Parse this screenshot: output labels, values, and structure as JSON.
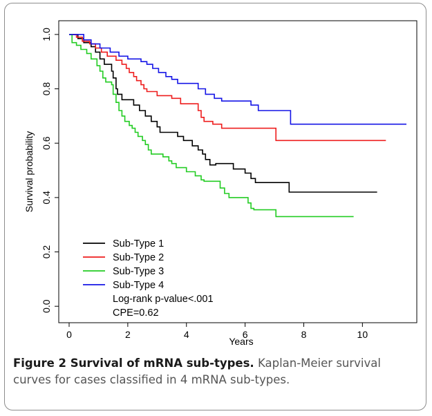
{
  "figure": {
    "caption_title": "Figure 2 Survival of mRNA sub-types.",
    "caption_text": " Kaplan-Meier survival curves for cases classified in 4 mRNA sub-types."
  },
  "chart_data": {
    "type": "line",
    "step": true,
    "title": "",
    "xlabel": "Years",
    "ylabel": "Survival probability",
    "xlim": [
      0,
      11.5
    ],
    "ylim": [
      -0.03,
      1.02
    ],
    "xticks": [
      0,
      2,
      4,
      6,
      8,
      10
    ],
    "yticks": [
      0.0,
      0.2,
      0.4,
      0.6,
      0.8,
      1.0
    ],
    "ytick_labels": [
      "0.0",
      "0.2",
      "0.4",
      "0.6",
      "0.8",
      "1.0"
    ],
    "grid": false,
    "legend_position": "bottom-left",
    "annotations": [
      "Log-rank p-value<.001",
      "CPE=0.62"
    ],
    "series": [
      {
        "name": "Sub-Type 1",
        "color": "#000000",
        "points": [
          [
            0,
            1.0
          ],
          [
            0.3,
            0.985
          ],
          [
            0.5,
            0.97
          ],
          [
            0.75,
            0.955
          ],
          [
            0.9,
            0.935
          ],
          [
            1.05,
            0.91
          ],
          [
            1.2,
            0.89
          ],
          [
            1.45,
            0.865
          ],
          [
            1.5,
            0.84
          ],
          [
            1.6,
            0.8
          ],
          [
            1.65,
            0.78
          ],
          [
            1.8,
            0.76
          ],
          [
            2.2,
            0.74
          ],
          [
            2.4,
            0.72
          ],
          [
            2.6,
            0.7
          ],
          [
            2.8,
            0.68
          ],
          [
            3.0,
            0.66
          ],
          [
            3.1,
            0.64
          ],
          [
            3.7,
            0.625
          ],
          [
            3.9,
            0.61
          ],
          [
            4.2,
            0.59
          ],
          [
            4.4,
            0.575
          ],
          [
            4.55,
            0.56
          ],
          [
            4.65,
            0.54
          ],
          [
            4.8,
            0.52
          ],
          [
            5.0,
            0.525
          ],
          [
            5.6,
            0.505
          ],
          [
            6.0,
            0.49
          ],
          [
            6.2,
            0.47
          ],
          [
            6.35,
            0.455
          ],
          [
            7.5,
            0.42
          ],
          [
            10.5,
            0.42
          ]
        ]
      },
      {
        "name": "Sub-Type 2",
        "color": "#ee1c1c",
        "points": [
          [
            0,
            1.0
          ],
          [
            0.25,
            0.99
          ],
          [
            0.45,
            0.975
          ],
          [
            0.7,
            0.965
          ],
          [
            0.9,
            0.95
          ],
          [
            1.1,
            0.935
          ],
          [
            1.3,
            0.92
          ],
          [
            1.6,
            0.905
          ],
          [
            1.8,
            0.89
          ],
          [
            1.95,
            0.875
          ],
          [
            2.05,
            0.86
          ],
          [
            2.2,
            0.845
          ],
          [
            2.3,
            0.83
          ],
          [
            2.45,
            0.815
          ],
          [
            2.55,
            0.8
          ],
          [
            2.65,
            0.79
          ],
          [
            3.0,
            0.775
          ],
          [
            3.5,
            0.765
          ],
          [
            3.8,
            0.745
          ],
          [
            4.4,
            0.72
          ],
          [
            4.5,
            0.695
          ],
          [
            4.6,
            0.68
          ],
          [
            4.9,
            0.67
          ],
          [
            5.2,
            0.655
          ],
          [
            7.05,
            0.61
          ],
          [
            10.8,
            0.61
          ]
        ]
      },
      {
        "name": "Sub-Type 3",
        "color": "#22cc22",
        "points": [
          [
            0,
            1.0
          ],
          [
            0.1,
            0.97
          ],
          [
            0.25,
            0.96
          ],
          [
            0.4,
            0.945
          ],
          [
            0.6,
            0.93
          ],
          [
            0.75,
            0.91
          ],
          [
            0.95,
            0.885
          ],
          [
            1.05,
            0.865
          ],
          [
            1.15,
            0.84
          ],
          [
            1.25,
            0.825
          ],
          [
            1.45,
            0.815
          ],
          [
            1.5,
            0.78
          ],
          [
            1.6,
            0.75
          ],
          [
            1.7,
            0.72
          ],
          [
            1.8,
            0.7
          ],
          [
            1.9,
            0.68
          ],
          [
            2.05,
            0.665
          ],
          [
            2.15,
            0.655
          ],
          [
            2.25,
            0.64
          ],
          [
            2.35,
            0.625
          ],
          [
            2.5,
            0.61
          ],
          [
            2.6,
            0.595
          ],
          [
            2.7,
            0.575
          ],
          [
            2.8,
            0.56
          ],
          [
            3.2,
            0.55
          ],
          [
            3.4,
            0.535
          ],
          [
            3.5,
            0.525
          ],
          [
            3.65,
            0.51
          ],
          [
            4.0,
            0.495
          ],
          [
            4.3,
            0.48
          ],
          [
            4.5,
            0.465
          ],
          [
            4.6,
            0.46
          ],
          [
            5.15,
            0.435
          ],
          [
            5.3,
            0.415
          ],
          [
            5.45,
            0.4
          ],
          [
            6.1,
            0.38
          ],
          [
            6.2,
            0.36
          ],
          [
            6.3,
            0.355
          ],
          [
            7.05,
            0.33
          ],
          [
            9.7,
            0.33
          ]
        ]
      },
      {
        "name": "Sub-Type 4",
        "color": "#1414e6",
        "points": [
          [
            0,
            1.0
          ],
          [
            0.5,
            0.98
          ],
          [
            0.75,
            0.965
          ],
          [
            1.05,
            0.95
          ],
          [
            1.4,
            0.935
          ],
          [
            1.7,
            0.92
          ],
          [
            2.0,
            0.91
          ],
          [
            2.45,
            0.9
          ],
          [
            2.65,
            0.89
          ],
          [
            2.85,
            0.875
          ],
          [
            3.05,
            0.86
          ],
          [
            3.3,
            0.845
          ],
          [
            3.5,
            0.835
          ],
          [
            3.7,
            0.82
          ],
          [
            4.4,
            0.8
          ],
          [
            4.65,
            0.78
          ],
          [
            4.95,
            0.765
          ],
          [
            5.2,
            0.755
          ],
          [
            6.2,
            0.74
          ],
          [
            6.45,
            0.72
          ],
          [
            7.55,
            0.67
          ],
          [
            11.5,
            0.67
          ]
        ]
      }
    ]
  }
}
